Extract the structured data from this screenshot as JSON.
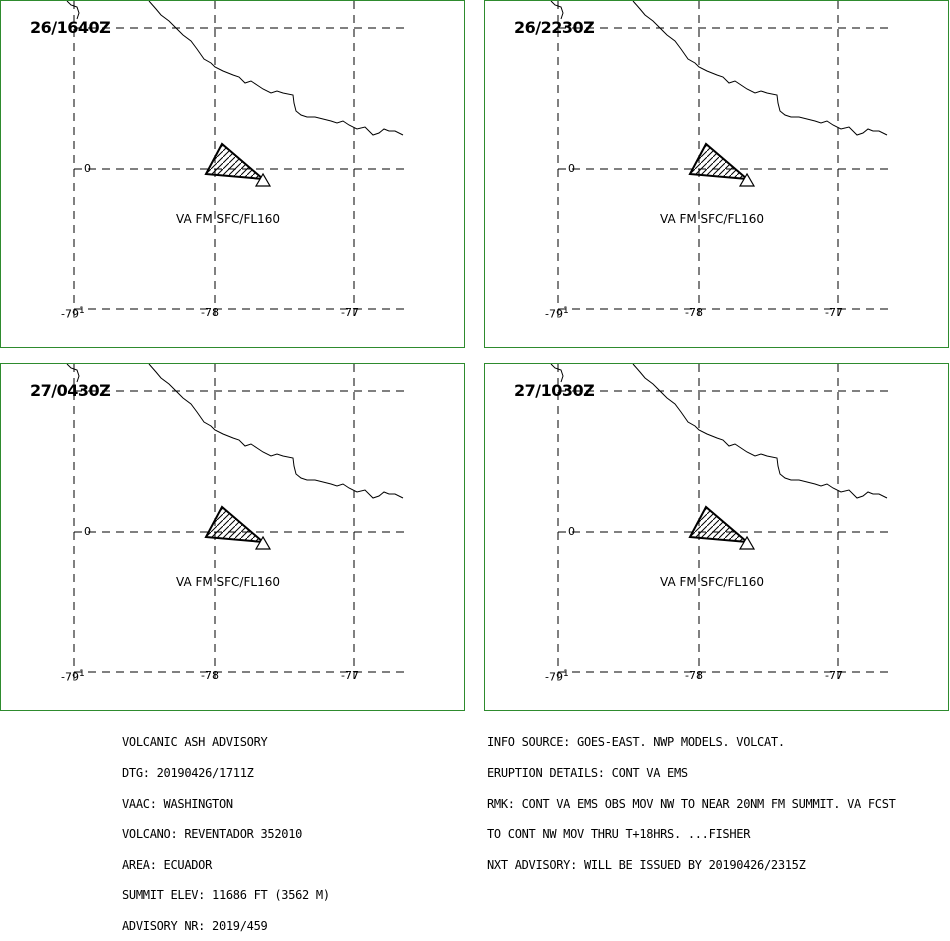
{
  "panels": [
    {
      "time": "26/1640Z",
      "va_label": "VA FM SFC/FL160"
    },
    {
      "time": "26/2230Z",
      "va_label": "VA FM SFC/FL160"
    },
    {
      "time": "27/0430Z",
      "va_label": "VA FM SFC/FL160"
    },
    {
      "time": "27/1030Z",
      "va_label": "VA FM SFC/FL160"
    }
  ],
  "grid_labels": {
    "lat_0": "0",
    "lon_79": "-79",
    "lon_78": "-78",
    "lon_77": "-77",
    "lat_neg1": "1"
  },
  "advisory": {
    "lines_left": [
      "VOLCANIC ASH ADVISORY",
      "DTG: 20190426/1711Z",
      "VAAC: WASHINGTON",
      "VOLCANO: REVENTADOR 352010",
      "AREA: ECUADOR",
      "SUMMIT ELEV: 11686 FT (3562 M)",
      "ADVISORY NR: 2019/459"
    ],
    "lines_right": [
      "INFO SOURCE: GOES-EAST. NWP MODELS. VOLCAT.",
      "ERUPTION DETAILS: CONT VA EMS",
      "RMK: CONT VA EMS OBS MOV NW TO NEAR 20NM FM SUMMIT. VA FCST",
      "TO CONT NW MOV THRU T+18HRS. ...FISHER",
      "NXT ADVISORY: WILL BE ISSUED BY 20190426/2315Z"
    ]
  },
  "colors": {
    "border": "#2e8b2e",
    "lines": "#000000"
  }
}
